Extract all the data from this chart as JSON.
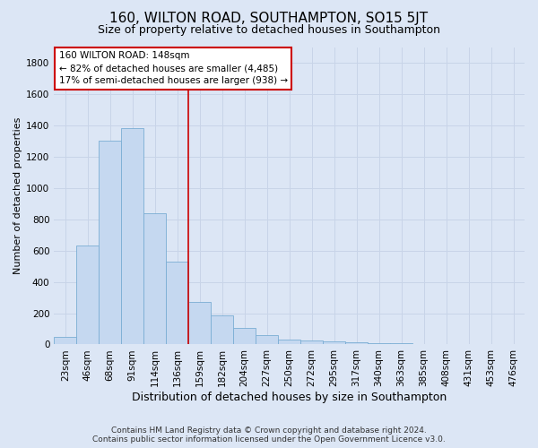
{
  "title": "160, WILTON ROAD, SOUTHAMPTON, SO15 5JT",
  "subtitle": "Size of property relative to detached houses in Southampton",
  "xlabel": "Distribution of detached houses by size in Southampton",
  "ylabel": "Number of detached properties",
  "footer_line1": "Contains HM Land Registry data © Crown copyright and database right 2024.",
  "footer_line2": "Contains public sector information licensed under the Open Government Licence v3.0.",
  "annotation_line1": "160 WILTON ROAD: 148sqm",
  "annotation_line2": "← 82% of detached houses are smaller (4,485)",
  "annotation_line3": "17% of semi-detached houses are larger (938) →",
  "bar_color": "#c5d8f0",
  "bar_edge_color": "#7aadd4",
  "grid_color": "#c8d4e8",
  "background_color": "#dce6f5",
  "plot_bg_color": "#dce6f5",
  "annotation_box_color": "#ffffff",
  "annotation_box_edge": "#cc0000",
  "vline_color": "#cc0000",
  "categories": [
    "23sqm",
    "46sqm",
    "68sqm",
    "91sqm",
    "114sqm",
    "136sqm",
    "159sqm",
    "182sqm",
    "204sqm",
    "227sqm",
    "250sqm",
    "272sqm",
    "295sqm",
    "317sqm",
    "340sqm",
    "363sqm",
    "385sqm",
    "408sqm",
    "431sqm",
    "453sqm",
    "476sqm"
  ],
  "values": [
    50,
    630,
    1300,
    1380,
    840,
    530,
    270,
    185,
    105,
    62,
    30,
    27,
    20,
    15,
    10,
    8,
    5,
    5,
    5,
    3,
    3
  ],
  "ylim": [
    0,
    1900
  ],
  "yticks": [
    0,
    200,
    400,
    600,
    800,
    1000,
    1200,
    1400,
    1600,
    1800
  ],
  "vline_x": 5.5,
  "title_fontsize": 11,
  "subtitle_fontsize": 9,
  "ylabel_fontsize": 8,
  "xlabel_fontsize": 9,
  "tick_fontsize": 7.5,
  "footer_fontsize": 6.5
}
